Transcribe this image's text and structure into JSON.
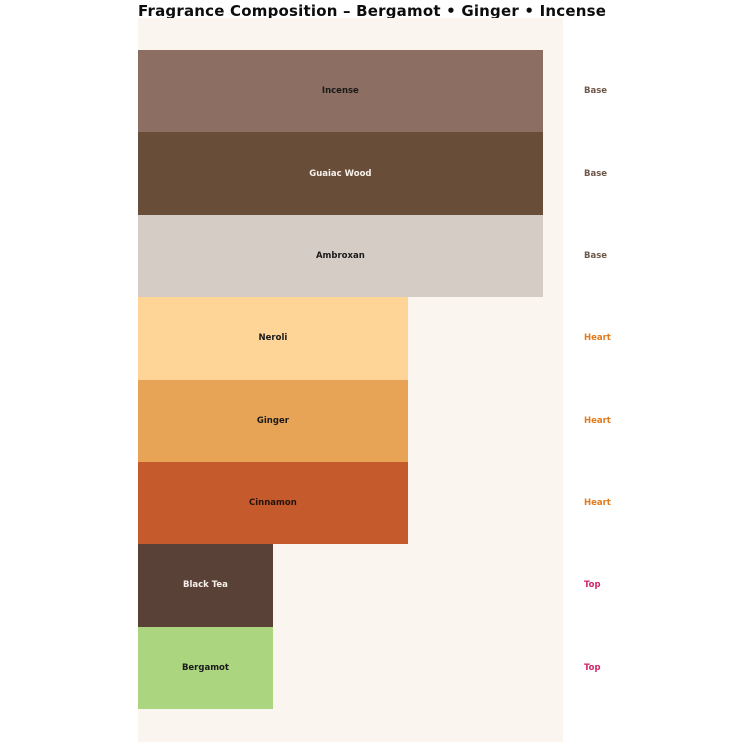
{
  "chart_data": {
    "type": "bar",
    "orientation": "horizontal",
    "title": "Fragrance Composition – Bergamot • Ginger • Incense",
    "xlabel": "",
    "ylabel": "",
    "xlim": [
      0,
      3.15
    ],
    "grid": false,
    "legend": "none",
    "plot_background": "#faf6ef",
    "page_background": "#ffffff",
    "bars": [
      {
        "label": "Incense",
        "layer": "Base",
        "value": 3,
        "color": "#8c6e63",
        "text_color": "#1a1a1a",
        "layer_color": "#6e584a"
      },
      {
        "label": "Guaiac Wood",
        "layer": "Base",
        "value": 3,
        "color": "#684d38",
        "text_color": "#f7f1ea",
        "layer_color": "#6e584a"
      },
      {
        "label": "Ambroxan",
        "layer": "Base",
        "value": 3,
        "color": "#d5cdc5",
        "text_color": "#1a1a1a",
        "layer_color": "#6e584a"
      },
      {
        "label": "Neroli",
        "layer": "Heart",
        "value": 2,
        "color": "#fed597",
        "text_color": "#1a1a1a",
        "layer_color": "#e07b1e"
      },
      {
        "label": "Ginger",
        "layer": "Heart",
        "value": 2,
        "color": "#e7a457",
        "text_color": "#1a1a1a",
        "layer_color": "#e07b1e"
      },
      {
        "label": "Cinnamon",
        "layer": "Heart",
        "value": 2,
        "color": "#c55a2d",
        "text_color": "#24140a",
        "layer_color": "#e07b1e"
      },
      {
        "label": "Black Tea",
        "layer": "Top",
        "value": 1,
        "color": "#5a4138",
        "text_color": "#f7f1ea",
        "layer_color": "#d2246a"
      },
      {
        "label": "Bergamot",
        "layer": "Top",
        "value": 1,
        "color": "#abd57e",
        "text_color": "#1a1a1a",
        "layer_color": "#d2246a"
      }
    ]
  }
}
